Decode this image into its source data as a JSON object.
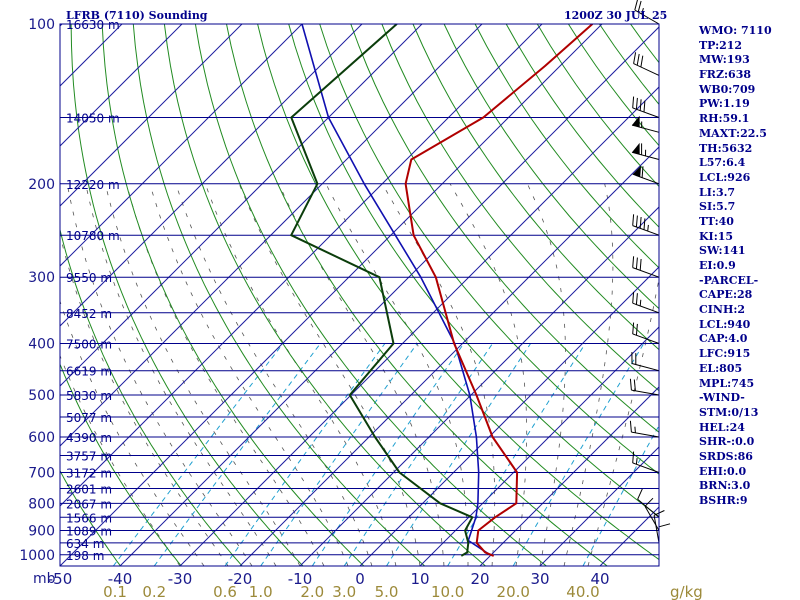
{
  "header": {
    "station": "LFRB (7110) Sounding",
    "datetime": "1200Z 30 JUL 25"
  },
  "indices": [
    "WMO: 7110",
    "TP:212",
    "MW:193",
    "FRZ:638",
    "WB0:709",
    "PW:1.19",
    "RH:59.1",
    "MAXT:22.5",
    "TH:5632",
    "L57:6.4",
    "LCL:926",
    "LI:3.7",
    "SI:5.7",
    "TT:40",
    "KI:15",
    "SW:141",
    "EI:0.9",
    "-PARCEL-",
    "CAPE:28",
    "CINH:2",
    "LCL:940",
    "CAP:4.0",
    "LFC:915",
    "EL:805",
    "MPL:745",
    "-WIND-",
    "STM:0/13",
    "HEL:24",
    "SHR-:0.0",
    "SRDS:86",
    "EHI:0.0",
    "BRN:3.0",
    "BSHR:9"
  ],
  "colors": {
    "isobar": "#00008b",
    "isotherm": "#1e1ea0",
    "dry_adiabat": "#228b22",
    "moist_adiabat": "#555555",
    "mixing_ratio": "#20a0d0",
    "temperature": "#b00000",
    "dewpoint": "#0b3d0b",
    "parcel": "#1010b0",
    "wind_barb": "#000000"
  },
  "chart_data": {
    "type": "skew-t",
    "axis_unit_label": "mb",
    "mixing_ratio_unit": "g/kg",
    "pressure_levels": [
      100,
      200,
      300,
      400,
      500,
      600,
      700,
      800,
      900,
      1000
    ],
    "temperature_ticks": [
      -50,
      -40,
      -30,
      -20,
      -10,
      0,
      10,
      20,
      30,
      40
    ],
    "mixing_ratio_ticks": [
      "0.1",
      "0.2",
      "0.6",
      "1.0",
      "2.0",
      "3.0",
      "5.0",
      "10.0",
      "20.0",
      "40.0"
    ],
    "height_levels": [
      {
        "p": 100,
        "h": "16630 m"
      },
      {
        "p": 150,
        "h": "14050 m"
      },
      {
        "p": 200,
        "h": "12220 m"
      },
      {
        "p": 250,
        "h": "10780 m"
      },
      {
        "p": 300,
        "h": "9550 m"
      },
      {
        "p": 350,
        "h": "8452 m"
      },
      {
        "p": 400,
        "h": "7500 m"
      },
      {
        "p": 450,
        "h": "6619 m"
      },
      {
        "p": 500,
        "h": "5830 m"
      },
      {
        "p": 550,
        "h": "5077 m"
      },
      {
        "p": 600,
        "h": "4390 m"
      },
      {
        "p": 650,
        "h": "3757 m"
      },
      {
        "p": 700,
        "h": "3172 m"
      },
      {
        "p": 750,
        "h": "2601 m"
      },
      {
        "p": 800,
        "h": "2067 m"
      },
      {
        "p": 850,
        "h": "1566 m"
      },
      {
        "p": 900,
        "h": "1089 m"
      },
      {
        "p": 950,
        "h": "634 m"
      },
      {
        "p": 1000,
        "h": "198 m"
      }
    ],
    "temperature_profile": [
      {
        "p": 1005,
        "t": 20.6
      },
      {
        "p": 990,
        "t": 18.6
      },
      {
        "p": 950,
        "t": 15.6
      },
      {
        "p": 900,
        "t": 13.8
      },
      {
        "p": 850,
        "t": 14.4
      },
      {
        "p": 800,
        "t": 15.6
      },
      {
        "p": 700,
        "t": 10.6
      },
      {
        "p": 600,
        "t": 0.6
      },
      {
        "p": 500,
        "t": -9.1
      },
      {
        "p": 400,
        "t": -21.4
      },
      {
        "p": 300,
        "t": -35.5
      },
      {
        "p": 250,
        "t": -46.2
      },
      {
        "p": 200,
        "t": -56.1
      },
      {
        "p": 180,
        "t": -59.2
      },
      {
        "p": 150,
        "t": -54.2
      },
      {
        "p": 120,
        "t": -52.5
      },
      {
        "p": 100,
        "t": -51.6
      }
    ],
    "dewpoint_profile": [
      {
        "p": 1005,
        "t": 15.2
      },
      {
        "p": 990,
        "t": 15.6
      },
      {
        "p": 950,
        "t": 14.2
      },
      {
        "p": 900,
        "t": 11.6
      },
      {
        "p": 850,
        "t": 10.6
      },
      {
        "p": 800,
        "t": 2.9
      },
      {
        "p": 700,
        "t": -9.0
      },
      {
        "p": 600,
        "t": -19.0
      },
      {
        "p": 500,
        "t": -30.2
      },
      {
        "p": 400,
        "t": -31.5
      },
      {
        "p": 300,
        "t": -44.9
      },
      {
        "p": 250,
        "t": -66.6
      },
      {
        "p": 200,
        "t": -70.8
      },
      {
        "p": 150,
        "t": -86.2
      },
      {
        "p": 100,
        "t": -84.2
      }
    ],
    "parcel_profile": [
      {
        "p": 1000,
        "t": 19.8
      },
      {
        "p": 940,
        "t": 13.8
      },
      {
        "p": 850,
        "t": 11.2
      },
      {
        "p": 800,
        "t": 9.2
      },
      {
        "p": 700,
        "t": 4.2
      },
      {
        "p": 600,
        "t": -2.1
      },
      {
        "p": 500,
        "t": -10.2
      },
      {
        "p": 400,
        "t": -21.3
      },
      {
        "p": 300,
        "t": -38.0
      },
      {
        "p": 200,
        "t": -63.0
      },
      {
        "p": 150,
        "t": -80.0
      },
      {
        "p": 100,
        "t": -100.0
      }
    ],
    "wind_barbs": [
      {
        "p": 1000,
        "dir": 0,
        "kt": 10
      },
      {
        "p": 950,
        "dir": 350,
        "kt": 10
      },
      {
        "p": 900,
        "dir": 330,
        "kt": 10
      },
      {
        "p": 850,
        "dir": 310,
        "kt": 10
      },
      {
        "p": 700,
        "dir": 290,
        "kt": 15
      },
      {
        "p": 600,
        "dir": 280,
        "kt": 15
      },
      {
        "p": 500,
        "dir": 280,
        "kt": 20
      },
      {
        "p": 450,
        "dir": 285,
        "kt": 20
      },
      {
        "p": 400,
        "dir": 290,
        "kt": 20
      },
      {
        "p": 350,
        "dir": 290,
        "kt": 25
      },
      {
        "p": 300,
        "dir": 290,
        "kt": 30
      },
      {
        "p": 250,
        "dir": 290,
        "kt": 45
      },
      {
        "p": 200,
        "dir": 290,
        "kt": 60
      },
      {
        "p": 180,
        "dir": 285,
        "kt": 65
      },
      {
        "p": 160,
        "dir": 285,
        "kt": 55
      },
      {
        "p": 150,
        "dir": 290,
        "kt": 40
      },
      {
        "p": 125,
        "dir": 295,
        "kt": 30
      },
      {
        "p": 100,
        "dir": 300,
        "kt": 25
      }
    ],
    "axis_ranges": {
      "pressure": [
        1050,
        100
      ],
      "temperature_at_surface": [
        -50,
        50
      ]
    }
  }
}
